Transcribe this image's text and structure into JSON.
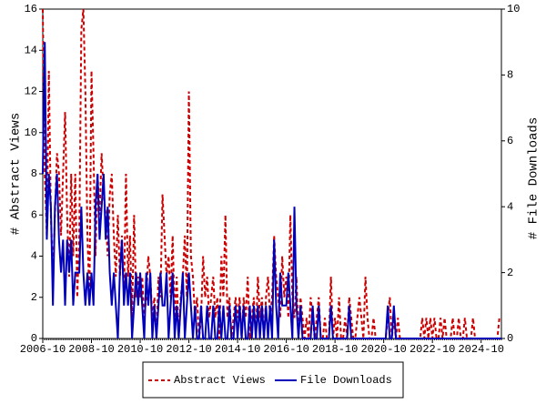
{
  "chart_data": {
    "type": "line",
    "ylabel": "# Abstract Views",
    "y2label": "# File Downloads",
    "x": [
      "2006-10",
      "2006-11",
      "2006-12",
      "2007-01",
      "2007-02",
      "2007-03",
      "2007-04",
      "2007-05",
      "2007-06",
      "2007-07",
      "2007-08",
      "2007-09",
      "2007-10",
      "2007-11",
      "2007-12",
      "2008-01",
      "2008-02",
      "2008-03",
      "2008-04",
      "2008-05",
      "2008-06",
      "2008-07",
      "2008-08",
      "2008-09",
      "2008-10",
      "2008-11",
      "2008-12",
      "2009-01",
      "2009-02",
      "2009-03",
      "2009-04",
      "2009-05",
      "2009-06",
      "2009-07",
      "2009-08",
      "2009-09",
      "2009-10",
      "2009-11",
      "2009-12",
      "2010-01",
      "2010-02",
      "2010-03",
      "2010-04",
      "2010-05",
      "2010-06",
      "2010-07",
      "2010-08",
      "2010-09",
      "2010-10",
      "2010-11",
      "2010-12",
      "2011-01",
      "2011-02",
      "2011-03",
      "2011-04",
      "2011-05",
      "2011-06",
      "2011-07",
      "2011-08",
      "2011-09",
      "2011-10",
      "2011-11",
      "2011-12",
      "2012-01",
      "2012-02",
      "2012-03",
      "2012-04",
      "2012-05",
      "2012-06",
      "2012-07",
      "2012-08",
      "2012-09",
      "2012-10",
      "2012-11",
      "2012-12",
      "2013-01",
      "2013-02",
      "2013-03",
      "2013-04",
      "2013-05",
      "2013-06",
      "2013-07",
      "2013-08",
      "2013-09",
      "2013-10",
      "2013-11",
      "2013-12",
      "2014-01",
      "2014-02",
      "2014-03",
      "2014-04",
      "2014-05",
      "2014-06",
      "2014-07",
      "2014-08",
      "2014-09",
      "2014-10",
      "2014-11",
      "2014-12",
      "2015-01",
      "2015-02",
      "2015-03",
      "2015-04",
      "2015-05",
      "2015-06",
      "2015-07",
      "2015-08",
      "2015-09",
      "2015-10",
      "2015-11",
      "2015-12",
      "2016-01",
      "2016-02",
      "2016-03",
      "2016-04",
      "2016-05",
      "2016-06",
      "2016-07",
      "2016-08",
      "2016-09",
      "2016-10",
      "2016-11",
      "2016-12",
      "2017-01",
      "2017-02",
      "2017-03",
      "2017-04",
      "2017-05",
      "2017-06",
      "2017-07",
      "2017-08",
      "2017-09",
      "2017-10",
      "2017-11",
      "2017-12",
      "2018-01",
      "2018-02",
      "2018-03",
      "2018-04",
      "2018-05",
      "2018-06",
      "2018-07",
      "2018-08",
      "2018-09",
      "2018-10",
      "2018-11",
      "2018-12",
      "2019-01",
      "2019-02",
      "2019-03",
      "2019-04",
      "2019-05",
      "2019-06",
      "2019-07",
      "2019-08",
      "2019-09",
      "2019-10",
      "2019-11",
      "2019-12",
      "2020-01",
      "2020-02",
      "2020-03",
      "2020-04",
      "2020-05",
      "2020-06",
      "2020-07",
      "2020-08",
      "2020-09",
      "2020-10",
      "2020-11",
      "2020-12",
      "2021-01",
      "2021-02",
      "2021-03",
      "2021-04",
      "2021-05",
      "2021-06",
      "2021-07",
      "2021-08",
      "2021-09",
      "2021-10",
      "2021-11",
      "2021-12",
      "2022-01",
      "2022-02",
      "2022-03",
      "2022-04",
      "2022-05",
      "2022-06",
      "2022-07",
      "2022-08",
      "2022-09",
      "2022-10",
      "2022-11",
      "2022-12",
      "2023-01",
      "2023-02",
      "2023-03",
      "2023-04",
      "2023-05",
      "2023-06",
      "2023-07",
      "2023-08",
      "2023-09",
      "2023-10",
      "2023-11",
      "2023-12",
      "2024-01",
      "2024-02",
      "2024-03",
      "2024-04",
      "2024-05",
      "2024-06",
      "2024-07",
      "2024-08",
      "2024-09",
      "2024-10",
      "2024-11",
      "2024-12",
      "2025-01",
      "2025-02",
      "2025-03",
      "2025-04",
      "2025-05",
      "2025-06",
      "2025-07",
      "2025-08"
    ],
    "xticks": [
      "2006-10",
      "2008-10",
      "2010-10",
      "2012-10",
      "2014-10",
      "2016-10",
      "2018-10",
      "2020-10",
      "2022-10",
      "2024-10"
    ],
    "series": [
      {
        "name": "Abstract Views",
        "color": "#cc0000",
        "dash": true,
        "values": [
          16,
          8,
          5,
          13,
          6,
          3,
          6,
          9,
          8,
          5,
          8,
          11,
          6,
          3,
          8,
          4,
          8,
          2,
          5,
          15,
          16,
          12,
          5,
          2,
          13,
          9,
          4,
          8,
          6,
          9,
          7,
          6,
          4,
          7,
          8,
          5,
          3,
          6,
          3,
          5,
          2,
          8,
          3,
          5,
          1,
          6,
          2,
          3,
          2,
          3,
          1,
          2,
          4,
          3,
          1,
          2,
          0,
          3,
          2,
          7,
          5,
          3,
          4,
          2,
          5,
          1,
          3,
          0,
          2,
          3,
          5,
          2,
          12,
          4,
          3,
          1,
          2,
          0,
          1,
          4,
          2,
          3,
          1,
          2,
          3,
          1,
          2,
          0,
          4,
          2,
          6,
          1,
          2,
          0,
          1,
          2,
          1,
          2,
          0,
          2,
          1,
          3,
          0,
          1,
          2,
          0,
          3,
          1,
          2,
          0,
          2,
          3,
          1,
          2,
          5,
          3,
          2,
          1,
          4,
          2,
          3,
          1,
          6,
          2,
          1,
          3,
          0,
          2,
          1,
          0,
          1,
          0,
          2,
          1,
          0,
          1,
          2,
          0,
          0,
          1,
          0,
          0,
          3,
          0,
          1,
          0,
          2,
          0,
          0,
          1,
          0,
          2,
          1,
          0,
          0,
          1,
          2,
          1,
          0,
          3,
          1,
          0,
          0,
          1,
          0,
          0,
          0,
          0,
          0,
          0,
          1,
          2,
          0,
          1,
          0,
          1,
          0,
          0,
          0,
          0,
          0,
          0,
          0,
          0,
          0,
          0,
          0,
          1,
          0,
          1,
          0,
          1,
          0,
          1,
          0,
          0,
          1,
          0,
          1,
          0,
          0,
          0,
          1,
          0,
          0,
          1,
          0,
          0,
          1,
          0,
          0,
          0,
          1,
          0,
          0,
          0,
          0,
          0,
          0,
          0,
          0,
          0,
          0,
          0,
          0,
          1,
          1
        ]
      },
      {
        "name": "File Downloads",
        "color": "#0000bb",
        "axis": "y2",
        "values": [
          5,
          9,
          3,
          5,
          4,
          1,
          4,
          5,
          3,
          2,
          3,
          1,
          3,
          2,
          3,
          1,
          2,
          2,
          2,
          4,
          2,
          1,
          2,
          1,
          2,
          1,
          4,
          5,
          3,
          4,
          5,
          3,
          4,
          2,
          1,
          2,
          1,
          0,
          2,
          3,
          1,
          2,
          1,
          2,
          0,
          1,
          2,
          1,
          2,
          1,
          0,
          2,
          1,
          2,
          0,
          1,
          0,
          1,
          2,
          1,
          1,
          2,
          0,
          1,
          2,
          0,
          1,
          0,
          1,
          2,
          0,
          1,
          2,
          1,
          0,
          1,
          0,
          0,
          1,
          0,
          0,
          1,
          0,
          0,
          1,
          0,
          0,
          1,
          0,
          1,
          0,
          0,
          1,
          0,
          0,
          1,
          0,
          1,
          0,
          1,
          0,
          0,
          1,
          0,
          1,
          0,
          1,
          0,
          1,
          0,
          1,
          0,
          1,
          0,
          3,
          1,
          0,
          2,
          1,
          1,
          1,
          2,
          1,
          0,
          4,
          1,
          0,
          1,
          0,
          0,
          0,
          0,
          0,
          1,
          0,
          0,
          1,
          0,
          0,
          0,
          0,
          0,
          1,
          0,
          0,
          0,
          0,
          0,
          0,
          0,
          0,
          1,
          0,
          0,
          0,
          0,
          0,
          0,
          0,
          0,
          0,
          0,
          0,
          0,
          0,
          0,
          0,
          0,
          0,
          0,
          1,
          0,
          0,
          1,
          0,
          0,
          0,
          0,
          0,
          0,
          0,
          0,
          0,
          0,
          0,
          0,
          0,
          0,
          0,
          0,
          0,
          0,
          0,
          0,
          0,
          0,
          0,
          0,
          0,
          0,
          0,
          0,
          0,
          0,
          0,
          0,
          0,
          0,
          0,
          0,
          0,
          0,
          0,
          0,
          0,
          0,
          0,
          0,
          0,
          0,
          0,
          0,
          0,
          0,
          0,
          0,
          0
        ]
      }
    ],
    "ylim": [
      0,
      16
    ],
    "yticks": [
      0,
      2,
      4,
      6,
      8,
      10,
      12,
      14,
      16
    ],
    "y2lim": [
      0,
      10
    ],
    "y2ticks": [
      0,
      2,
      4,
      6,
      8,
      10
    ]
  }
}
